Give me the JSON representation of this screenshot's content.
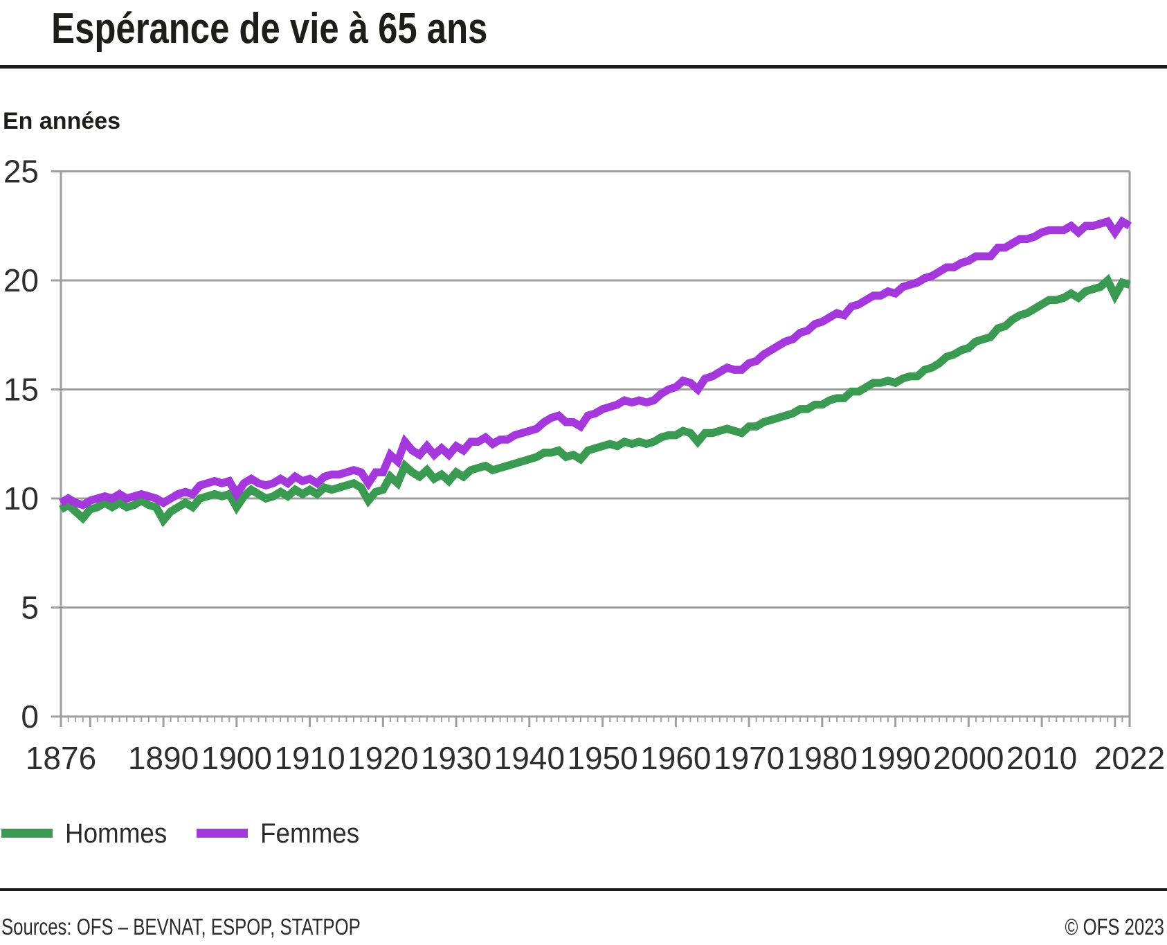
{
  "header": {
    "title": "Espérance de vie à 65 ans",
    "unit_label": "En années"
  },
  "legend": {
    "items": [
      {
        "label": "Hommes",
        "color": "#3a9a51"
      },
      {
        "label": "Femmes",
        "color": "#a438dd"
      }
    ]
  },
  "footer": {
    "sources": "Sources: OFS – BEVNAT, ESPOP, STATPOP",
    "copyright": "© OFS 2023"
  },
  "colors": {
    "grid": "#9e9e9e",
    "axis_text": "#2e2e2e",
    "title_text": "#1d1d1b"
  },
  "chart_data": {
    "type": "line",
    "title": "Espérance de vie à 65 ans",
    "ylabel": "En années",
    "ylim": [
      0,
      25
    ],
    "y_ticks": [
      0,
      5,
      10,
      15,
      20,
      25
    ],
    "x_start_year": 1876,
    "x_end_year": 2022,
    "x_step_years": 1,
    "x_tick_labels": [
      "1876",
      "1890",
      "1900",
      "1910",
      "1920",
      "1930",
      "1940",
      "1950",
      "1960",
      "1970",
      "1980",
      "1990",
      "2000",
      "2010",
      "2022"
    ],
    "grid": "horizontal",
    "legend_position": "bottom-left",
    "series": [
      {
        "name": "Hommes",
        "color": "#3a9a51",
        "values": [
          9.5,
          9.7,
          9.4,
          9.1,
          9.5,
          9.6,
          9.8,
          9.6,
          9.8,
          9.6,
          9.7,
          9.9,
          9.7,
          9.6,
          9.0,
          9.4,
          9.6,
          9.8,
          9.6,
          10.0,
          10.1,
          10.2,
          10.1,
          10.2,
          9.6,
          10.1,
          10.4,
          10.2,
          10.0,
          10.1,
          10.3,
          10.1,
          10.4,
          10.2,
          10.4,
          10.2,
          10.5,
          10.4,
          10.5,
          10.6,
          10.7,
          10.5,
          9.9,
          10.3,
          10.4,
          11.0,
          10.7,
          11.5,
          11.2,
          11.0,
          11.3,
          10.9,
          11.1,
          10.8,
          11.2,
          11.0,
          11.3,
          11.4,
          11.5,
          11.3,
          11.4,
          11.5,
          11.6,
          11.7,
          11.8,
          11.9,
          12.1,
          12.1,
          12.2,
          11.9,
          12.0,
          11.8,
          12.2,
          12.3,
          12.4,
          12.5,
          12.4,
          12.6,
          12.5,
          12.6,
          12.5,
          12.6,
          12.8,
          12.9,
          12.9,
          13.1,
          13.0,
          12.6,
          13.0,
          13.0,
          13.1,
          13.2,
          13.1,
          13.0,
          13.3,
          13.3,
          13.5,
          13.6,
          13.7,
          13.8,
          13.9,
          14.1,
          14.1,
          14.3,
          14.3,
          14.5,
          14.6,
          14.6,
          14.9,
          14.9,
          15.1,
          15.3,
          15.3,
          15.4,
          15.3,
          15.5,
          15.6,
          15.6,
          15.9,
          16.0,
          16.2,
          16.5,
          16.6,
          16.8,
          16.9,
          17.2,
          17.3,
          17.4,
          17.8,
          17.9,
          18.2,
          18.4,
          18.5,
          18.7,
          18.9,
          19.1,
          19.1,
          19.2,
          19.4,
          19.2,
          19.5,
          19.6,
          19.7,
          20.0,
          19.3,
          19.9,
          19.8
        ]
      },
      {
        "name": "Femmes",
        "color": "#a438dd",
        "values": [
          9.8,
          10.0,
          9.8,
          9.7,
          9.9,
          10.0,
          10.1,
          10.0,
          10.2,
          10.0,
          10.1,
          10.2,
          10.1,
          10.0,
          9.8,
          10.0,
          10.2,
          10.3,
          10.2,
          10.6,
          10.7,
          10.8,
          10.7,
          10.8,
          10.2,
          10.7,
          10.9,
          10.7,
          10.6,
          10.7,
          10.9,
          10.7,
          11.0,
          10.8,
          10.9,
          10.7,
          11.0,
          11.1,
          11.1,
          11.2,
          11.3,
          11.2,
          10.7,
          11.2,
          11.2,
          12.0,
          11.7,
          12.6,
          12.2,
          12.0,
          12.4,
          12.0,
          12.3,
          12.0,
          12.4,
          12.2,
          12.6,
          12.6,
          12.8,
          12.5,
          12.7,
          12.7,
          12.9,
          13.0,
          13.1,
          13.2,
          13.5,
          13.7,
          13.8,
          13.5,
          13.5,
          13.3,
          13.8,
          13.9,
          14.1,
          14.2,
          14.3,
          14.5,
          14.4,
          14.5,
          14.4,
          14.5,
          14.8,
          15.0,
          15.1,
          15.4,
          15.3,
          15.0,
          15.5,
          15.6,
          15.8,
          16.0,
          15.9,
          15.9,
          16.2,
          16.3,
          16.6,
          16.8,
          17.0,
          17.2,
          17.3,
          17.6,
          17.7,
          18.0,
          18.1,
          18.3,
          18.5,
          18.4,
          18.8,
          18.9,
          19.1,
          19.3,
          19.3,
          19.5,
          19.4,
          19.7,
          19.8,
          19.9,
          20.1,
          20.2,
          20.4,
          20.6,
          20.6,
          20.8,
          20.9,
          21.1,
          21.1,
          21.1,
          21.5,
          21.5,
          21.7,
          21.9,
          21.9,
          22.0,
          22.2,
          22.3,
          22.3,
          22.3,
          22.5,
          22.2,
          22.5,
          22.5,
          22.6,
          22.7,
          22.2,
          22.7,
          22.5
        ]
      }
    ]
  }
}
